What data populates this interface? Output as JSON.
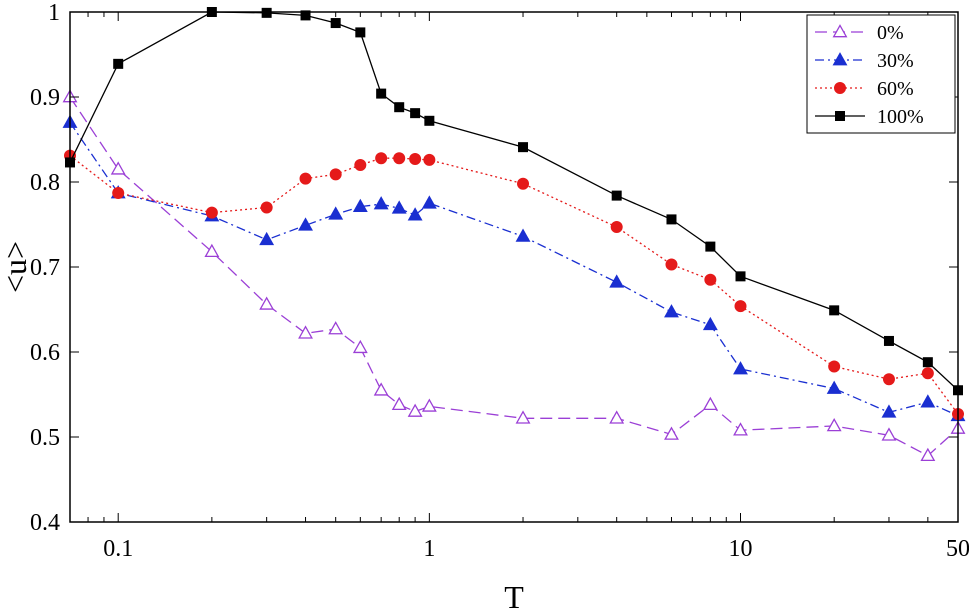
{
  "chart_data": {
    "type": "line",
    "title": "",
    "xlabel": "T",
    "ylabel": "<u>",
    "xscale": "log",
    "xlim": [
      0.07,
      50
    ],
    "ylim": [
      0.4,
      1.0
    ],
    "x_ticks": [
      0.1,
      1,
      10,
      50
    ],
    "x_tick_labels": [
      "0.1",
      "1",
      "10",
      "50"
    ],
    "y_ticks": [
      0.4,
      0.5,
      0.6,
      0.7,
      0.8,
      0.9,
      1.0
    ],
    "y_tick_labels": [
      "0.4",
      "0.5",
      "0.6",
      "0.7",
      "0.8",
      "0.9",
      "1"
    ],
    "grid": false,
    "legend_position": "top-right",
    "series": [
      {
        "name": "0%",
        "color": "#9b3fd6",
        "line_style": "dashed",
        "marker": "triangle-open",
        "x": [
          0.07,
          0.1,
          0.2,
          0.3,
          0.4,
          0.5,
          0.6,
          0.7,
          0.8,
          0.9,
          1,
          2,
          4,
          6,
          8,
          10,
          20,
          30,
          40,
          50
        ],
        "y": [
          0.9,
          0.815,
          0.718,
          0.656,
          0.622,
          0.627,
          0.605,
          0.555,
          0.538,
          0.53,
          0.536,
          0.522,
          0.522,
          0.503,
          0.538,
          0.508,
          0.513,
          0.502,
          0.478,
          0.51
        ]
      },
      {
        "name": "30%",
        "color": "#1a2fd1",
        "line_style": "dashdot",
        "marker": "triangle-filled",
        "x": [
          0.07,
          0.1,
          0.2,
          0.3,
          0.4,
          0.5,
          0.6,
          0.7,
          0.8,
          0.9,
          1,
          2,
          4,
          6,
          8,
          10,
          20,
          30,
          40,
          50
        ],
        "y": [
          0.87,
          0.787,
          0.76,
          0.732,
          0.749,
          0.762,
          0.771,
          0.774,
          0.769,
          0.761,
          0.775,
          0.736,
          0.682,
          0.647,
          0.632,
          0.58,
          0.557,
          0.529,
          0.541,
          0.525
        ]
      },
      {
        "name": "60%",
        "color": "#e51a1a",
        "line_style": "dotted",
        "marker": "circle-filled",
        "x": [
          0.07,
          0.1,
          0.2,
          0.3,
          0.4,
          0.5,
          0.6,
          0.7,
          0.8,
          0.9,
          1,
          2,
          4,
          6,
          8,
          10,
          20,
          30,
          40,
          50
        ],
        "y": [
          0.831,
          0.787,
          0.764,
          0.77,
          0.804,
          0.809,
          0.82,
          0.828,
          0.828,
          0.827,
          0.826,
          0.798,
          0.747,
          0.703,
          0.685,
          0.654,
          0.583,
          0.568,
          0.575,
          0.527
        ]
      },
      {
        "name": "100%",
        "color": "#000000",
        "line_style": "solid",
        "marker": "square-filled",
        "x": [
          0.07,
          0.1,
          0.2,
          0.3,
          0.4,
          0.5,
          0.6,
          0.7,
          0.8,
          0.9,
          1,
          2,
          4,
          6,
          8,
          10,
          20,
          30,
          40,
          50
        ],
        "y": [
          0.823,
          0.939,
          1.0,
          0.999,
          0.996,
          0.987,
          0.976,
          0.904,
          0.888,
          0.881,
          0.872,
          0.841,
          0.784,
          0.756,
          0.724,
          0.689,
          0.649,
          0.613,
          0.588,
          0.555
        ]
      }
    ]
  }
}
